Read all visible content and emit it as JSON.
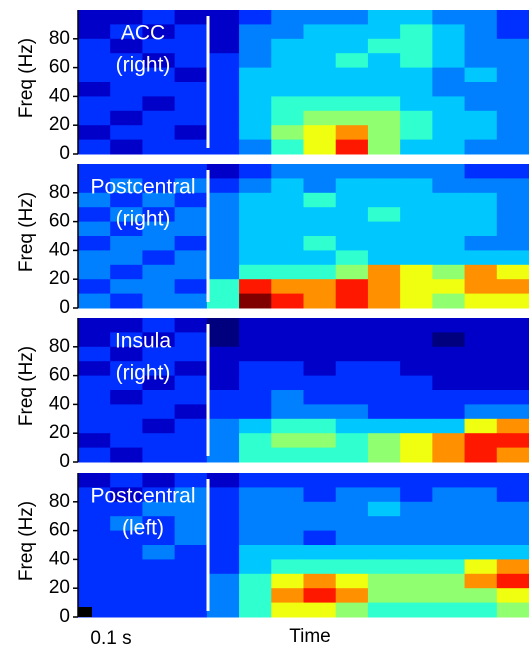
{
  "chart_data": [
    {
      "type": "heatmap",
      "title": "ACC",
      "subtitle": "(right)",
      "ylabel": "Freq (Hz)",
      "ylim": [
        0,
        100
      ],
      "yticks": [
        0,
        20,
        40,
        60,
        80
      ],
      "colormap": [
        "#00007f",
        "#0000c8",
        "#0030ff",
        "#0080ff",
        "#00c8ff",
        "#30ffd0",
        "#90ff70",
        "#f0ff10",
        "#ff9000",
        "#ff1800",
        "#800000"
      ],
      "values": [
        [
          1,
          1,
          2,
          1,
          1,
          2,
          3,
          3,
          3,
          4,
          4,
          3,
          3,
          2
        ],
        [
          1,
          2,
          1,
          2,
          1,
          3,
          3,
          4,
          4,
          4,
          5,
          4,
          3,
          2
        ],
        [
          2,
          1,
          2,
          2,
          1,
          3,
          4,
          4,
          4,
          5,
          5,
          4,
          3,
          3
        ],
        [
          2,
          2,
          1,
          2,
          2,
          3,
          4,
          4,
          5,
          4,
          5,
          4,
          3,
          3
        ],
        [
          2,
          2,
          2,
          1,
          2,
          4,
          4,
          4,
          4,
          4,
          4,
          3,
          4,
          3
        ],
        [
          1,
          2,
          2,
          2,
          2,
          4,
          4,
          4,
          4,
          4,
          4,
          3,
          3,
          3
        ],
        [
          2,
          2,
          1,
          2,
          2,
          4,
          5,
          5,
          5,
          5,
          4,
          4,
          3,
          3
        ],
        [
          2,
          1,
          2,
          2,
          2,
          4,
          5,
          6,
          6,
          6,
          5,
          4,
          4,
          3
        ],
        [
          1,
          2,
          2,
          1,
          2,
          4,
          6,
          7,
          8,
          6,
          5,
          4,
          4,
          3
        ],
        [
          2,
          1,
          2,
          2,
          2,
          3,
          5,
          7,
          9,
          6,
          4,
          4,
          3,
          3
        ]
      ]
    },
    {
      "type": "heatmap",
      "title": "Postcentral",
      "subtitle": "(right)",
      "ylabel": "Freq (Hz)",
      "ylim": [
        0,
        100
      ],
      "yticks": [
        0,
        20,
        40,
        60,
        80
      ],
      "colormap": [
        "#00007f",
        "#0000c8",
        "#0030ff",
        "#0080ff",
        "#00c8ff",
        "#30ffd0",
        "#90ff70",
        "#f0ff10",
        "#ff9000",
        "#ff1800",
        "#800000"
      ],
      "values": [
        [
          2,
          2,
          2,
          2,
          1,
          2,
          3,
          3,
          3,
          3,
          3,
          3,
          2,
          2
        ],
        [
          2,
          3,
          2,
          3,
          2,
          3,
          4,
          3,
          4,
          4,
          4,
          3,
          3,
          3
        ],
        [
          3,
          2,
          3,
          2,
          3,
          4,
          4,
          5,
          4,
          4,
          4,
          4,
          4,
          3
        ],
        [
          2,
          3,
          2,
          3,
          3,
          4,
          4,
          4,
          4,
          5,
          4,
          4,
          4,
          3
        ],
        [
          3,
          2,
          3,
          3,
          3,
          4,
          4,
          4,
          4,
          4,
          4,
          4,
          4,
          3
        ],
        [
          2,
          3,
          3,
          2,
          3,
          4,
          4,
          5,
          4,
          4,
          4,
          4,
          3,
          3
        ],
        [
          3,
          3,
          2,
          3,
          3,
          4,
          4,
          4,
          5,
          4,
          4,
          4,
          4,
          4
        ],
        [
          3,
          2,
          3,
          3,
          3,
          5,
          5,
          5,
          6,
          8,
          7,
          6,
          8,
          7
        ],
        [
          2,
          3,
          3,
          2,
          5,
          9,
          8,
          8,
          9,
          8,
          7,
          7,
          8,
          8
        ],
        [
          3,
          2,
          3,
          3,
          5,
          10,
          9,
          8,
          9,
          8,
          7,
          6,
          7,
          7
        ]
      ]
    },
    {
      "type": "heatmap",
      "title": "Insula",
      "subtitle": "(right)",
      "ylabel": "Freq (Hz)",
      "ylim": [
        0,
        100
      ],
      "yticks": [
        0,
        20,
        40,
        60,
        80
      ],
      "colormap": [
        "#00007f",
        "#0000c8",
        "#0030ff",
        "#0080ff",
        "#00c8ff",
        "#30ffd0",
        "#90ff70",
        "#f0ff10",
        "#ff9000",
        "#ff1800",
        "#800000"
      ],
      "values": [
        [
          1,
          1,
          2,
          1,
          0,
          1,
          1,
          1,
          1,
          1,
          1,
          1,
          1,
          1
        ],
        [
          1,
          2,
          1,
          2,
          0,
          1,
          1,
          1,
          1,
          1,
          1,
          0,
          1,
          1
        ],
        [
          2,
          1,
          2,
          2,
          1,
          1,
          1,
          1,
          1,
          1,
          1,
          1,
          1,
          1
        ],
        [
          1,
          2,
          2,
          1,
          1,
          2,
          2,
          1,
          2,
          2,
          1,
          1,
          1,
          1
        ],
        [
          2,
          2,
          1,
          2,
          1,
          2,
          2,
          2,
          2,
          2,
          2,
          1,
          1,
          1
        ],
        [
          2,
          1,
          2,
          2,
          2,
          2,
          3,
          2,
          2,
          2,
          2,
          2,
          2,
          2
        ],
        [
          2,
          2,
          2,
          1,
          2,
          2,
          3,
          3,
          3,
          2,
          2,
          2,
          3,
          3
        ],
        [
          2,
          2,
          1,
          2,
          3,
          4,
          5,
          5,
          4,
          4,
          4,
          4,
          7,
          8
        ],
        [
          1,
          2,
          2,
          2,
          3,
          5,
          6,
          6,
          5,
          6,
          7,
          8,
          9,
          9
        ],
        [
          2,
          1,
          2,
          2,
          3,
          5,
          5,
          5,
          5,
          6,
          7,
          8,
          9,
          8
        ]
      ]
    },
    {
      "type": "heatmap",
      "title": "Postcentral",
      "subtitle": "(left)",
      "ylabel": "Freq (Hz)",
      "ylim": [
        0,
        100
      ],
      "yticks": [
        0,
        20,
        40,
        60,
        80
      ],
      "scale_bar_label": "0.1 s",
      "xlabel": "Time",
      "colormap": [
        "#00007f",
        "#0000c8",
        "#0030ff",
        "#0080ff",
        "#00c8ff",
        "#30ffd0",
        "#90ff70",
        "#f0ff10",
        "#ff9000",
        "#ff1800",
        "#800000"
      ],
      "values": [
        [
          1,
          2,
          1,
          2,
          1,
          2,
          2,
          2,
          2,
          2,
          2,
          2,
          2,
          2
        ],
        [
          2,
          1,
          2,
          3,
          2,
          3,
          3,
          2,
          3,
          3,
          2,
          3,
          3,
          2
        ],
        [
          2,
          2,
          3,
          3,
          2,
          3,
          3,
          3,
          3,
          4,
          3,
          3,
          3,
          3
        ],
        [
          2,
          3,
          2,
          3,
          2,
          3,
          3,
          3,
          3,
          3,
          3,
          3,
          3,
          3
        ],
        [
          2,
          2,
          2,
          3,
          2,
          3,
          3,
          2,
          3,
          3,
          3,
          3,
          3,
          3
        ],
        [
          2,
          2,
          3,
          2,
          2,
          4,
          4,
          4,
          4,
          4,
          4,
          4,
          4,
          4
        ],
        [
          2,
          2,
          2,
          2,
          2,
          4,
          5,
          5,
          5,
          5,
          5,
          5,
          7,
          8
        ],
        [
          2,
          2,
          2,
          2,
          3,
          5,
          7,
          8,
          7,
          6,
          6,
          6,
          8,
          9
        ],
        [
          2,
          2,
          2,
          2,
          3,
          5,
          8,
          9,
          8,
          6,
          6,
          6,
          6,
          7
        ],
        [
          2,
          2,
          2,
          2,
          3,
          5,
          7,
          7,
          6,
          5,
          5,
          5,
          5,
          6
        ]
      ]
    }
  ]
}
